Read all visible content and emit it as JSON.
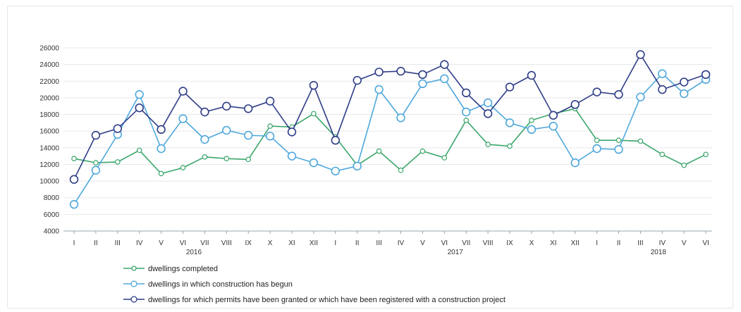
{
  "chart_data": {
    "type": "line",
    "categories": [
      "I",
      "II",
      "III",
      "IV",
      "V",
      "VI",
      "VII",
      "VIII",
      "IX",
      "X",
      "XI",
      "XII",
      "I",
      "II",
      "III",
      "IV",
      "V",
      "VI",
      "VII",
      "VIII",
      "IX",
      "X",
      "XI",
      "XII",
      "I",
      "II",
      "III",
      "IV",
      "V",
      "VI"
    ],
    "years": [
      {
        "label": "2016",
        "start": 0,
        "end": 11
      },
      {
        "label": "2017",
        "start": 12,
        "end": 23
      },
      {
        "label": "2018",
        "start": 24,
        "end": 29
      }
    ],
    "ylim": [
      4000,
      26000
    ],
    "yticks": [
      "4000",
      "6000",
      "8000",
      "10000",
      "12000",
      "14000",
      "16000",
      "18000",
      "20000",
      "22000",
      "24000",
      "26000"
    ],
    "grid": true,
    "legend_position": "bottom-left",
    "series": [
      {
        "name": "dwellings completed",
        "color": "#3aa66a",
        "marker_size": "small",
        "values": [
          12700,
          12200,
          12300,
          13700,
          10900,
          11600,
          12900,
          12700,
          12600,
          16600,
          16500,
          18100,
          15300,
          11900,
          13600,
          11300,
          13600,
          12800,
          17300,
          14400,
          14200,
          17300,
          18100,
          18700,
          14900,
          14900,
          14800,
          13200,
          11900,
          13200
        ]
      },
      {
        "name": "dwellings in which construction has begun",
        "color": "#4fa8dc",
        "marker_size": "large",
        "values": [
          7200,
          11300,
          15600,
          20400,
          13900,
          17500,
          15000,
          16100,
          15500,
          15400,
          13000,
          12200,
          11200,
          11800,
          21000,
          17600,
          21700,
          22300,
          18300,
          19400,
          17000,
          16200,
          16600,
          12200,
          13900,
          13800,
          20100,
          22900,
          20500,
          22200
        ]
      },
      {
        "name": "dwellings for which permits have been granted or which have been registered with a construction project",
        "color": "#2f3d87",
        "marker_size": "large",
        "values": [
          10200,
          15500,
          16300,
          18800,
          16200,
          20800,
          18300,
          19000,
          18700,
          19600,
          15900,
          21500,
          14900,
          22100,
          23100,
          23200,
          22800,
          24000,
          20600,
          18100,
          21300,
          22700,
          17900,
          19200,
          20700,
          20400,
          25200,
          21000,
          21900,
          22800
        ]
      }
    ]
  }
}
